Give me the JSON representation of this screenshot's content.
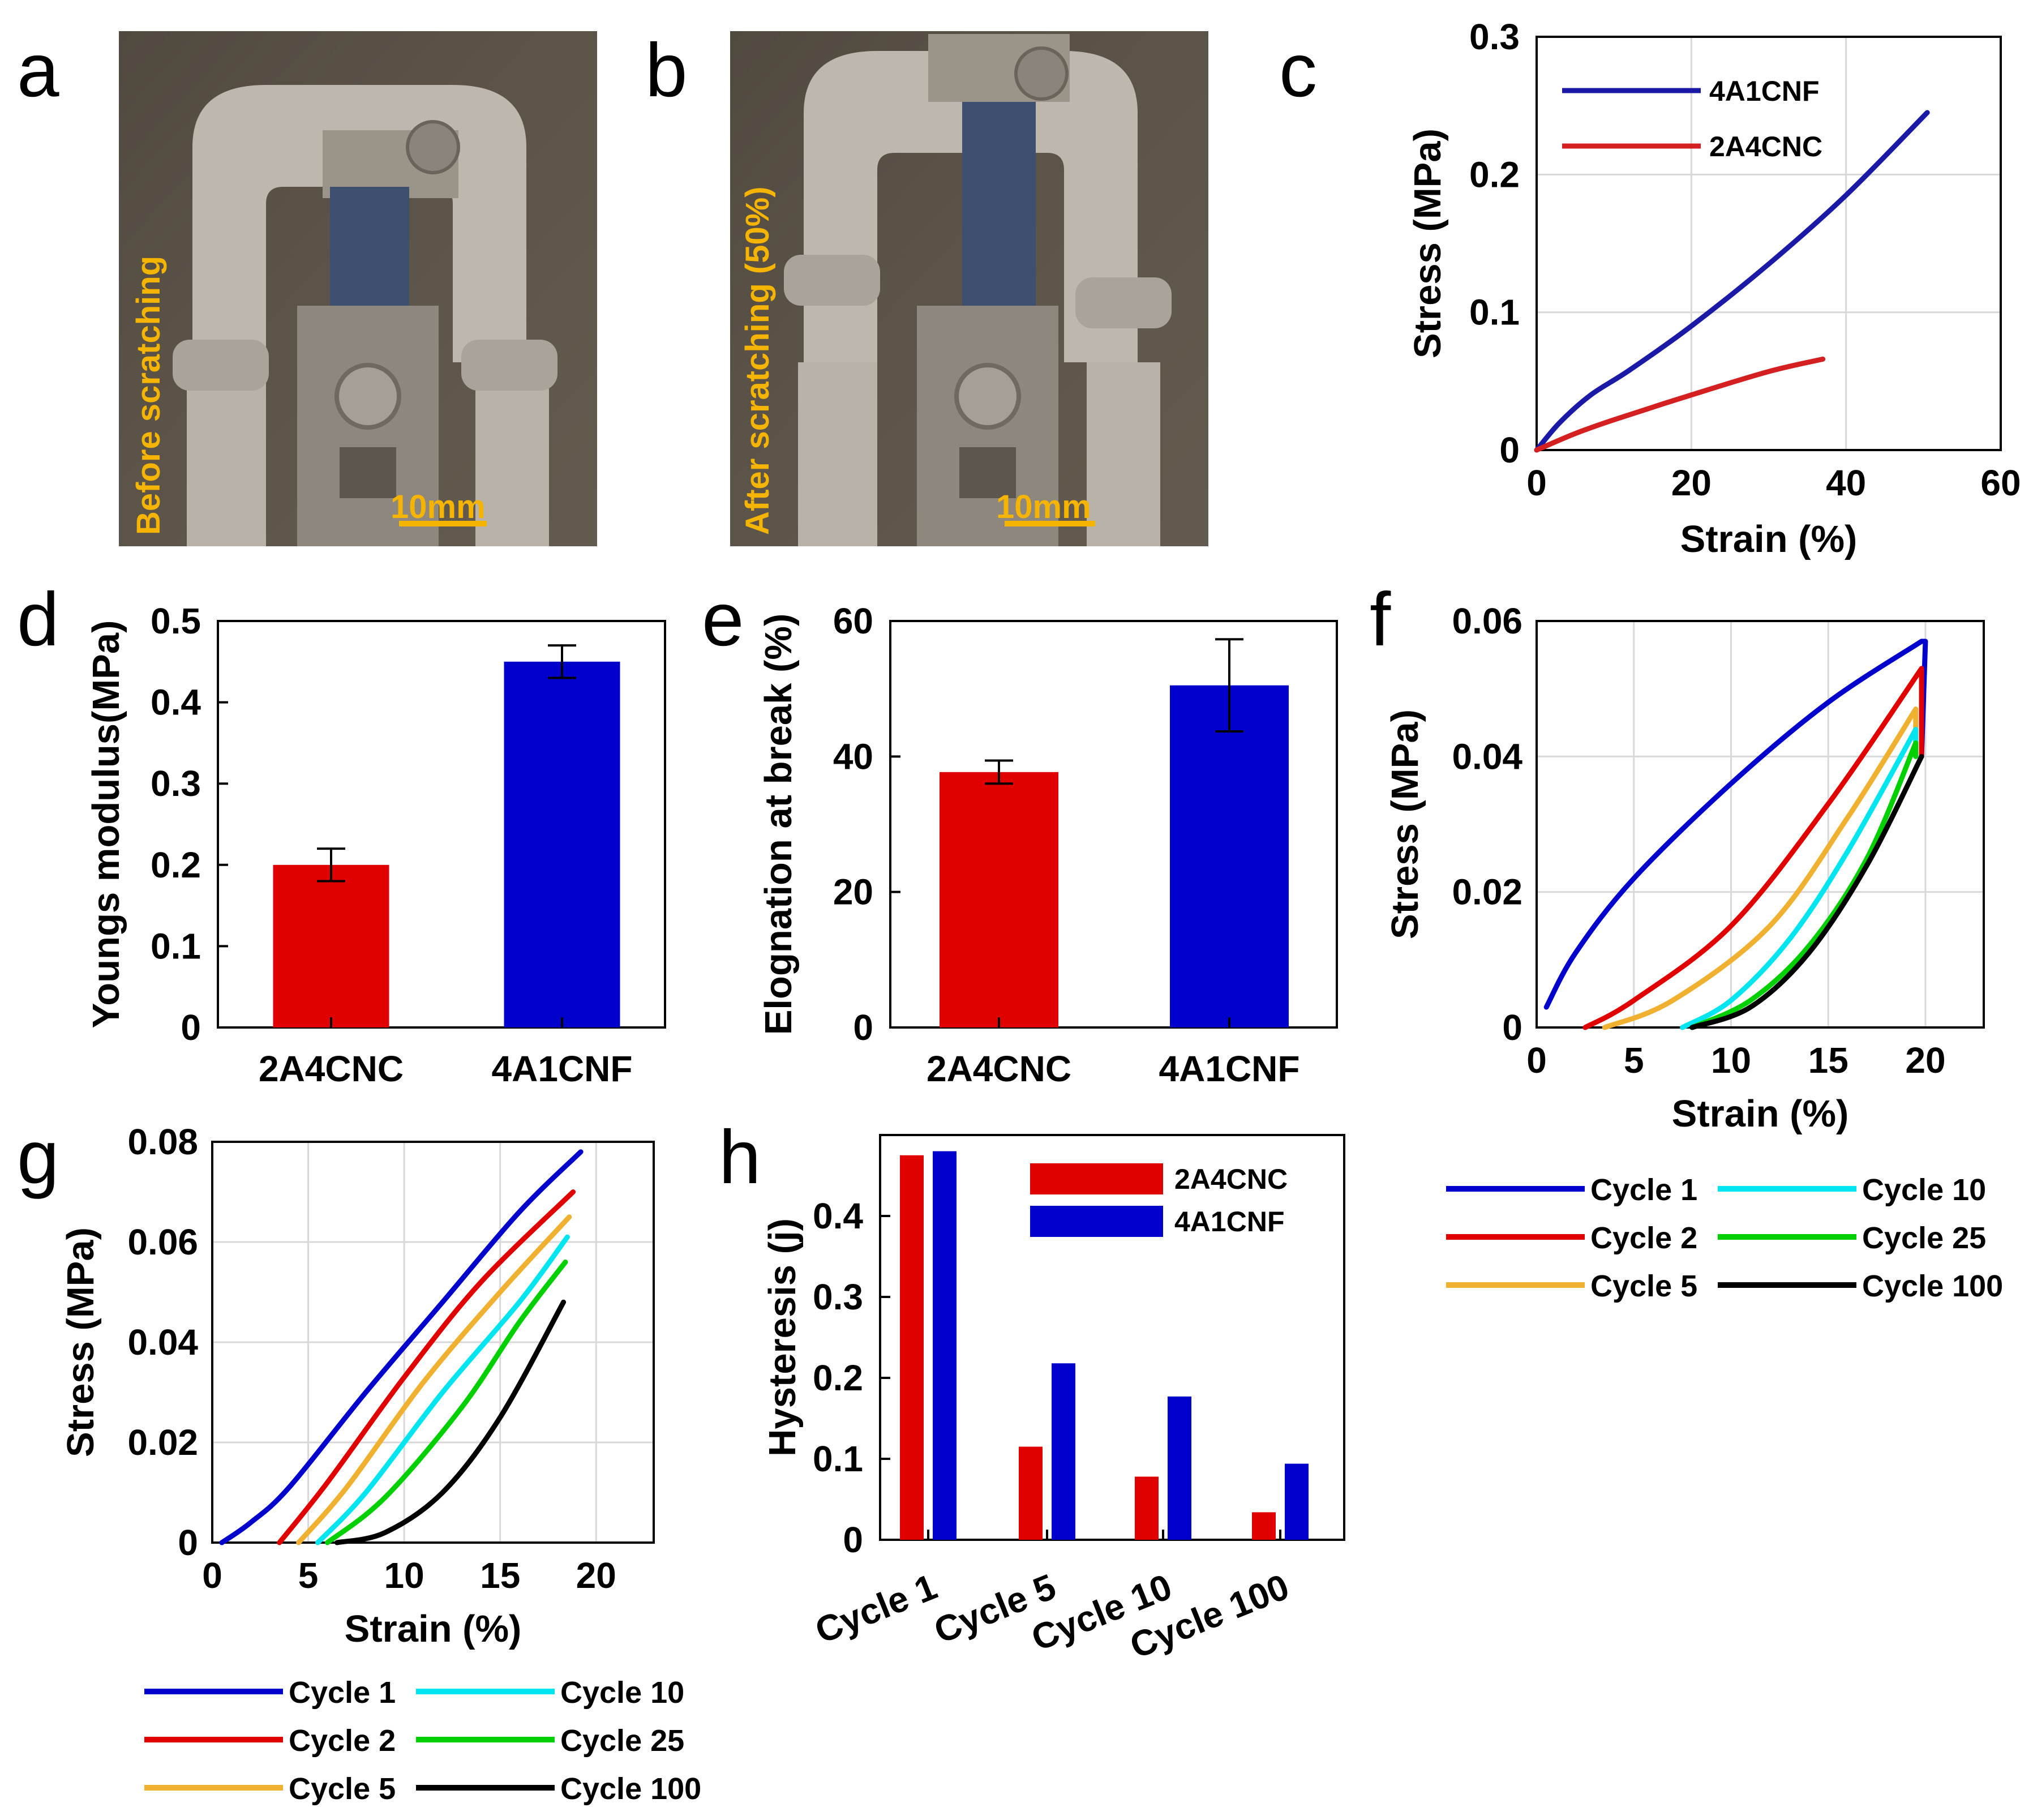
{
  "panel_labels": [
    "a",
    "b",
    "c",
    "d",
    "e",
    "f",
    "g",
    "h"
  ],
  "photos": {
    "a": {
      "caption": "Before scratching",
      "scale": "10mm"
    },
    "b": {
      "caption": "After scratching (50%)",
      "scale": "10mm"
    }
  },
  "colors": {
    "blue": "#0000cc",
    "red": "#e00000",
    "orange": "#f0b030",
    "cyan": "#00e5f0",
    "green": "#00d000",
    "black": "#000000",
    "c_blue": "#1a1aa6",
    "c_red": "#d42020",
    "scale": "#f5b400"
  },
  "chart_data": [
    {
      "id": "c",
      "type": "line",
      "xlabel": "Strain (%)",
      "ylabel": "Stress (MPa)",
      "xlim": [
        0,
        60
      ],
      "ylim": [
        0,
        0.3
      ],
      "xticks": [
        "0",
        "20",
        "40",
        "60"
      ],
      "yticks": [
        "0",
        "0.1",
        "0.2",
        "0.3"
      ],
      "legend_position": "top-left",
      "series": [
        {
          "name": "4A1CNF",
          "color": "c_blue",
          "x": [
            0,
            3,
            7,
            12,
            20,
            30,
            40,
            50.5
          ],
          "y": [
            0,
            0.02,
            0.04,
            0.058,
            0.09,
            0.135,
            0.185,
            0.245
          ]
        },
        {
          "name": "2A4CNC",
          "color": "c_red",
          "x": [
            0,
            5,
            10,
            20,
            30,
            37
          ],
          "y": [
            0,
            0.012,
            0.022,
            0.04,
            0.057,
            0.066
          ]
        }
      ]
    },
    {
      "id": "d",
      "type": "bar",
      "ylabel": "Youngs modulus(MPa)",
      "categories": [
        "2A4CNC",
        "4A1CNF"
      ],
      "values": [
        0.2,
        0.45
      ],
      "errors": [
        0.02,
        0.02
      ],
      "colors": [
        "red",
        "blue"
      ],
      "ylim": [
        0,
        0.5
      ],
      "yticks": [
        "0",
        "0.1",
        "0.2",
        "0.3",
        "0.4",
        "0.5"
      ]
    },
    {
      "id": "e",
      "type": "bar",
      "ylabel": "Elognation at break (%)",
      "categories": [
        "2A4CNC",
        "4A1CNF"
      ],
      "values": [
        37.7,
        50.5
      ],
      "errors": [
        1.7,
        6.8
      ],
      "colors": [
        "red",
        "blue"
      ],
      "ylim": [
        0,
        60
      ],
      "yticks": [
        "0",
        "20",
        "40",
        "60"
      ]
    },
    {
      "id": "f",
      "type": "line",
      "xlabel": "Strain (%)",
      "ylabel": "Stress (MPa)",
      "xlim": [
        0,
        23
      ],
      "ylim": [
        0,
        0.06
      ],
      "xticks": [
        "0",
        "5",
        "10",
        "15",
        "20"
      ],
      "yticks": [
        "0",
        "0.02",
        "0.04",
        "0.06"
      ],
      "legend_position": "bottom",
      "series": [
        {
          "name": "Cycle 1",
          "color": "blue",
          "x": [
            0.5,
            2,
            5,
            10,
            15,
            19.8
          ],
          "y": [
            0.003,
            0.011,
            0.022,
            0.036,
            0.048,
            0.057
          ],
          "x_unload": [
            20,
            19.8
          ],
          "y_unload": [
            0.057,
            0.04
          ]
        },
        {
          "name": "Cycle 2",
          "color": "red",
          "x": [
            2.5,
            5,
            10,
            15,
            19.8
          ],
          "y": [
            0,
            0.004,
            0.015,
            0.033,
            0.053
          ],
          "x_unload": [
            19.8
          ],
          "y_unload": [
            0.04
          ]
        },
        {
          "name": "Cycle 5",
          "color": "orange",
          "x": [
            3.5,
            7,
            12,
            16,
            19.5
          ],
          "y": [
            0,
            0.004,
            0.015,
            0.031,
            0.047
          ],
          "x_unload": [
            19.5
          ],
          "y_unload": [
            0.04
          ]
        },
        {
          "name": "Cycle 10",
          "color": "cyan",
          "x": [
            7.5,
            10,
            13,
            16,
            19.5
          ],
          "y": [
            0,
            0.004,
            0.013,
            0.026,
            0.044
          ],
          "x_unload": [
            19.5
          ],
          "y_unload": [
            0.04
          ]
        },
        {
          "name": "Cycle 25",
          "color": "green",
          "x": [
            8,
            11,
            14,
            17,
            19.5
          ],
          "y": [
            0,
            0.004,
            0.012,
            0.025,
            0.042
          ],
          "x_unload": [
            19.5
          ],
          "y_unload": [
            0.04
          ]
        },
        {
          "name": "Cycle 100",
          "color": "black",
          "x": [
            8,
            11,
            14,
            17,
            19.8
          ],
          "y": [
            0,
            0.003,
            0.011,
            0.024,
            0.04
          ],
          "x_unload": [
            19.8
          ],
          "y_unload": [
            0.04
          ]
        }
      ]
    },
    {
      "id": "g",
      "type": "line",
      "xlabel": "Strain (%)",
      "ylabel": "Stress (MPa)",
      "xlim": [
        0,
        23
      ],
      "ylim": [
        0,
        0.08
      ],
      "xticks": [
        "0",
        "5",
        "10",
        "15",
        "20"
      ],
      "yticks": [
        "0",
        "0.02",
        "0.04",
        "0.06",
        "0.08"
      ],
      "legend_position": "bottom",
      "series": [
        {
          "name": "Cycle 1",
          "color": "blue",
          "x": [
            0.5,
            2,
            4,
            8,
            12,
            16,
            19.2
          ],
          "y": [
            0,
            0.004,
            0.011,
            0.03,
            0.048,
            0.066,
            0.078
          ]
        },
        {
          "name": "Cycle 2",
          "color": "red",
          "x": [
            3.5,
            6,
            10,
            14,
            18.8
          ],
          "y": [
            0,
            0.012,
            0.033,
            0.052,
            0.07
          ]
        },
        {
          "name": "Cycle 5",
          "color": "orange",
          "x": [
            4.5,
            7,
            11,
            15,
            18.6
          ],
          "y": [
            0,
            0.011,
            0.032,
            0.05,
            0.065
          ]
        },
        {
          "name": "Cycle 10",
          "color": "cyan",
          "x": [
            5.5,
            8,
            12,
            16,
            18.5
          ],
          "y": [
            0,
            0.01,
            0.03,
            0.048,
            0.061
          ]
        },
        {
          "name": "Cycle 25",
          "color": "green",
          "x": [
            6,
            9,
            13,
            16,
            18.4
          ],
          "y": [
            0,
            0.009,
            0.027,
            0.044,
            0.056
          ]
        },
        {
          "name": "Cycle 100",
          "color": "black",
          "x": [
            6.5,
            9,
            12,
            15,
            18.3
          ],
          "y": [
            0,
            0.002,
            0.01,
            0.025,
            0.048
          ]
        }
      ]
    },
    {
      "id": "h",
      "type": "bar",
      "ylabel": "Hysteresis (j)",
      "categories": [
        "Cycle 1",
        "Cycle 5",
        "Cycle 10",
        "Cycle 100"
      ],
      "series": [
        {
          "name": "2A4CNC",
          "color": "red",
          "values": [
            0.475,
            0.115,
            0.078,
            0.034
          ]
        },
        {
          "name": "4A1CNF",
          "color": "blue",
          "values": [
            0.48,
            0.218,
            0.177,
            0.094
          ]
        }
      ],
      "ylim": [
        0,
        0.5
      ],
      "yticks": [
        "0",
        "0.1",
        "0.2",
        "0.3",
        "0.4"
      ],
      "legend_position": "top-right"
    }
  ]
}
